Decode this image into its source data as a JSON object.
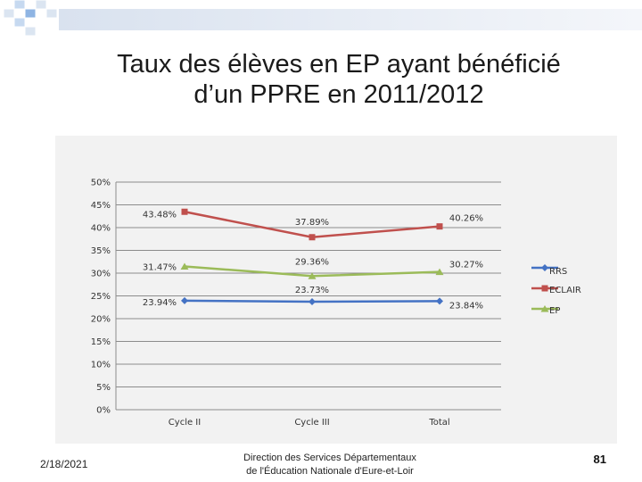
{
  "slide": {
    "title_line1": "Taux des élèves en EP ayant bénéficié",
    "title_line2": "d’un PPRE en 2011/2012",
    "date": "2/18/2021",
    "footer_line1": "Direction des Services Départementaux",
    "footer_line2": "de l'Éducation Nationale d'Eure-et-Loir",
    "page_number": "81"
  },
  "chart_data": {
    "type": "line",
    "categories": [
      "Cycle II",
      "Cycle III",
      "Total"
    ],
    "ylim": [
      0,
      50
    ],
    "y_ticks": [
      0,
      5,
      10,
      15,
      20,
      25,
      30,
      35,
      40,
      45,
      50
    ],
    "y_tick_labels": [
      "0%",
      "5%",
      "10%",
      "15%",
      "20%",
      "25%",
      "30%",
      "35%",
      "40%",
      "45%",
      "50%"
    ],
    "grid": true,
    "legend_position": "right",
    "series": [
      {
        "name": "RRS",
        "values": [
          23.94,
          23.73,
          23.84
        ],
        "labels": [
          "23.94%",
          "23.73%",
          "23.84%"
        ],
        "color": "#4472c4",
        "marker": "diamond"
      },
      {
        "name": "ECLAIR",
        "values": [
          43.48,
          37.89,
          40.26
        ],
        "labels": [
          "43.48%",
          "37.89%",
          "40.26%"
        ],
        "color": "#c0504d",
        "marker": "square"
      },
      {
        "name": "EP",
        "values": [
          31.47,
          29.36,
          30.27
        ],
        "labels": [
          "31.47%",
          "29.36%",
          "30.27%"
        ],
        "color": "#9bbb59",
        "marker": "triangle"
      }
    ]
  }
}
